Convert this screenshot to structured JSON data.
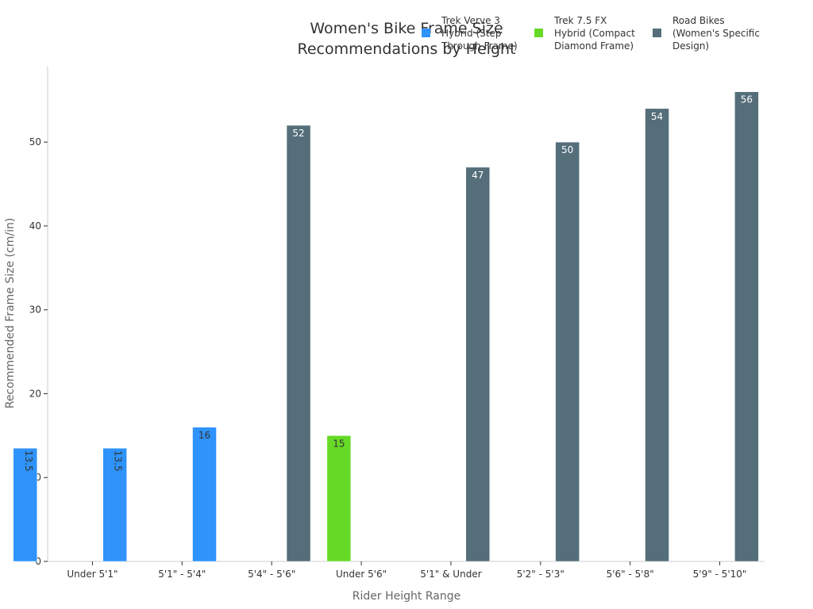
{
  "chart_data": {
    "type": "bar",
    "title": [
      "Women's Bike Frame Size",
      "Recommendations by Height"
    ],
    "xlabel": "Rider Height Range",
    "ylabel": "Recommended Frame Size (cm/in)",
    "ylim": [
      0,
      59
    ],
    "yticks": [
      0,
      10,
      20,
      30,
      40,
      50
    ],
    "grid": false,
    "legend_position": "top-right",
    "categories": [
      "Under 5'1\"",
      "5'1\" - 5'4\"",
      "5'4\" - 5'6\"",
      "Under 5'6\"",
      "5'1\" & Under",
      "5'2\" - 5'3\"",
      "5'6\" - 5'8\"",
      "5'9\" - 5'10\""
    ],
    "series": [
      {
        "name": [
          "Trek Verve 3",
          "Hybrid (Step",
          "Through Frame)"
        ],
        "color": "#2E93FA",
        "label_color": "#333333",
        "values": [
          13.5,
          13.5,
          16,
          null,
          null,
          null,
          null,
          null
        ],
        "rotated_labels": [
          true,
          true,
          false,
          false,
          false,
          false,
          false,
          false
        ]
      },
      {
        "name": [
          "Trek 7.5 FX",
          "Hybrid (Compact",
          "Diamond Frame)"
        ],
        "color": "#66DA26",
        "label_color": "#333333",
        "values": [
          null,
          null,
          null,
          15,
          null,
          null,
          null,
          null
        ],
        "rotated_labels": [
          false,
          false,
          false,
          false,
          false,
          false,
          false,
          false
        ]
      },
      {
        "name": [
          "Road Bikes",
          "(Women's Specific",
          "Design)"
        ],
        "color": "#546E7A",
        "label_color": "#ffffff",
        "values": [
          null,
          null,
          52,
          null,
          47,
          50,
          54,
          56
        ],
        "rotated_labels": [
          false,
          false,
          false,
          false,
          false,
          false,
          false,
          false
        ]
      }
    ]
  }
}
